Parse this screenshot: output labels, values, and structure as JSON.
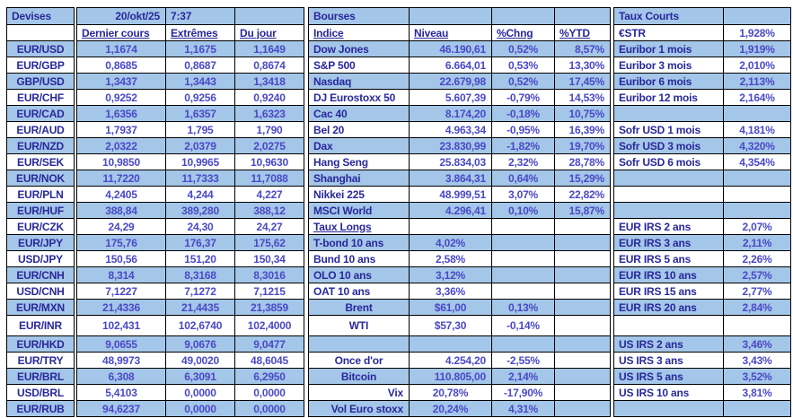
{
  "colors": {
    "row_blue": "#a4c6e8",
    "row_white": "#ffffff",
    "label_text": "#28289b",
    "value_text": "#4a49c7",
    "border": "#000000"
  },
  "devises": {
    "title": "Devises",
    "date": "20/okt/25",
    "time": "7:37",
    "col_headers": [
      "Dernier cours",
      "Extrêmes",
      "Du jour"
    ],
    "rows": [
      {
        "pair": "EUR/USD",
        "dernier": "1,1674",
        "extremes": "1,1675",
        "du_jour": "1,1649"
      },
      {
        "pair": "EUR/GBP",
        "dernier": "0,8685",
        "extremes": "0,8687",
        "du_jour": "0,8674"
      },
      {
        "pair": "GBP/USD",
        "dernier": "1,3437",
        "extremes": "1,3443",
        "du_jour": "1,3418"
      },
      {
        "pair": "EUR/CHF",
        "dernier": "0,9252",
        "extremes": "0,9256",
        "du_jour": "0,9240"
      },
      {
        "pair": "EUR/CAD",
        "dernier": "1,6356",
        "extremes": "1,6357",
        "du_jour": "1,6323"
      },
      {
        "pair": "EUR/AUD",
        "dernier": "1,7937",
        "extremes": "1,795",
        "du_jour": "1,790"
      },
      {
        "pair": "EUR/NZD",
        "dernier": "2,0322",
        "extremes": "2,0379",
        "du_jour": "2,0275"
      },
      {
        "pair": "EUR/SEK",
        "dernier": "10,9850",
        "extremes": "10,9965",
        "du_jour": "10,9630"
      },
      {
        "pair": "EUR/NOK",
        "dernier": "11,7220",
        "extremes": "11,7333",
        "du_jour": "11,7088"
      },
      {
        "pair": "EUR/PLN",
        "dernier": "4,2405",
        "extremes": "4,244",
        "du_jour": "4,227"
      },
      {
        "pair": "EUR/HUF",
        "dernier": "388,84",
        "extremes": "389,280",
        "du_jour": "388,12"
      },
      {
        "pair": "EUR/CZK",
        "dernier": "24,29",
        "extremes": "24,30",
        "du_jour": "24,27"
      },
      {
        "pair": "EUR/JPY",
        "dernier": "175,76",
        "extremes": "176,37",
        "du_jour": "175,62"
      },
      {
        "pair": "USD/JPY",
        "dernier": "150,56",
        "extremes": "151,20",
        "du_jour": "150,34"
      },
      {
        "pair": "EUR/CNH",
        "dernier": "8,314",
        "extremes": "8,3168",
        "du_jour": "8,3016"
      },
      {
        "pair": "USD/CNH",
        "dernier": "7,1227",
        "extremes": "7,1272",
        "du_jour": "7,1215"
      },
      {
        "pair": "EUR/MXN",
        "dernier": "21,4336",
        "extremes": "21,4435",
        "du_jour": "21,3859"
      },
      {
        "pair": "EUR/INR",
        "dernier": "102,431",
        "extremes": "102,6740",
        "du_jour": "102,4000"
      },
      {
        "pair": "EUR/HKD",
        "dernier": "9,0655",
        "extremes": "9,0676",
        "du_jour": "9,0477"
      },
      {
        "pair": "EUR/TRY",
        "dernier": "48,9973",
        "extremes": "49,0020",
        "du_jour": "48,6045"
      },
      {
        "pair": "EUR/BRL",
        "dernier": "6,308",
        "extremes": "6,3091",
        "du_jour": "6,2950"
      },
      {
        "pair": "USD/BRL",
        "dernier": "5,4103",
        "extremes": "0,0000",
        "du_jour": "0,0000"
      },
      {
        "pair": "EUR/RUB",
        "dernier": "94,6237",
        "extremes": "0,0000",
        "du_jour": "0,0000"
      }
    ]
  },
  "bourses": {
    "title": "Bourses",
    "col_headers": [
      "Indice",
      "Niveau",
      "%Chng",
      "%YTD"
    ],
    "rows": [
      {
        "label": "Dow Jones",
        "niveau": "46.190,61",
        "chng": "0,52%",
        "ytd": "8,57%"
      },
      {
        "label": "S&P 500",
        "niveau": "6.664,01",
        "chng": "0,53%",
        "ytd": "13,30%"
      },
      {
        "label": "Nasdaq",
        "niveau": "22.679,98",
        "chng": "0,52%",
        "ytd": "17,45%"
      },
      {
        "label": "DJ Eurostoxx 50",
        "niveau": "5.607,39",
        "chng": "-0,79%",
        "ytd": "14,53%"
      },
      {
        "label": "Cac 40",
        "niveau": "8.174,20",
        "chng": "-0,18%",
        "ytd": "10,75%"
      },
      {
        "label": "Bel 20",
        "niveau": "4.963,34",
        "chng": "-0,95%",
        "ytd": "16,39%"
      },
      {
        "label": "Dax",
        "niveau": "23.830,99",
        "chng": "-1,82%",
        "ytd": "19,70%"
      },
      {
        "label": "Hang Seng",
        "niveau": "25.834,03",
        "chng": "2,32%",
        "ytd": "28,78%"
      },
      {
        "label": "Shanghai",
        "niveau": "3.864,31",
        "chng": "0,64%",
        "ytd": "15,29%"
      },
      {
        "label": "Nikkei 225",
        "niveau": "48.999,51",
        "chng": "3,07%",
        "ytd": "22,82%"
      },
      {
        "label": "MSCI World",
        "niveau": "4.296,41",
        "chng": "0,10%",
        "ytd": "15,87%"
      },
      {
        "label": "Taux Longs",
        "niveau": "",
        "chng": "",
        "ytd": "",
        "style": "section_header"
      },
      {
        "label": "T-bond 10 ans",
        "niveau": "4,02%",
        "chng": "",
        "ytd": "",
        "niveau_align": "center"
      },
      {
        "label": "Bund 10 ans",
        "niveau": "2,58%",
        "chng": "",
        "ytd": "",
        "niveau_align": "center"
      },
      {
        "label": "OLO 10 ans",
        "niveau": "3,12%",
        "chng": "",
        "ytd": "",
        "niveau_align": "center"
      },
      {
        "label": "OAT 10 ans",
        "niveau": "3,36%",
        "chng": "",
        "ytd": "",
        "niveau_align": "center"
      },
      {
        "label": "Brent",
        "niveau": "$61,00",
        "chng": "0,13%",
        "ytd": "",
        "label_align": "center",
        "niveau_align": "center"
      },
      {
        "label": "WTI",
        "niveau": "$57,30",
        "chng": "-0,14%",
        "ytd": "",
        "label_align": "center",
        "niveau_align": "center"
      },
      {
        "label": "",
        "niveau": "",
        "chng": "",
        "ytd": ""
      },
      {
        "label": "Once d'or",
        "niveau": "4.254,20",
        "chng": "-2,55%",
        "ytd": "",
        "label_align": "center"
      },
      {
        "label": "Bitcoin",
        "niveau": "110.805,00",
        "chng": "2,14%",
        "ytd": "",
        "label_align": "center"
      },
      {
        "label": "Vix",
        "niveau": "20,78%",
        "chng": "-17,90%",
        "ytd": "",
        "label_align": "right",
        "niveau_align": "center"
      },
      {
        "label": "Vol Euro stoxx",
        "niveau": "20,24%",
        "chng": "4,31%",
        "ytd": "",
        "label_align": "right",
        "niveau_align": "center"
      }
    ]
  },
  "taux": {
    "title": "Taux Courts",
    "rows": [
      {
        "label": "€STR",
        "value": "1,928%"
      },
      {
        "label": "Euribor 1 mois",
        "value": "1,919%"
      },
      {
        "label": "Euribor 3 mois",
        "value": "2,010%"
      },
      {
        "label": "Euribor 6 mois",
        "value": "2,113%"
      },
      {
        "label": "Euribor 12 mois",
        "value": "2,164%"
      },
      {
        "label": "",
        "value": ""
      },
      {
        "label": "Sofr USD 1 mois",
        "value": "4,181%"
      },
      {
        "label": "Sofr USD 3 mois",
        "value": "4,320%"
      },
      {
        "label": "Sofr USD 6 mois",
        "value": "4,354%"
      },
      {
        "label": "",
        "value": ""
      },
      {
        "label": "",
        "value": ""
      },
      {
        "label": "",
        "value": ""
      },
      {
        "label": "EUR IRS 2 ans",
        "value": "2,07%"
      },
      {
        "label": "EUR IRS 3 ans",
        "value": "2,11%"
      },
      {
        "label": "EUR IRS 5 ans",
        "value": "2,26%"
      },
      {
        "label": "EUR IRS 10 ans",
        "value": "2,57%"
      },
      {
        "label": "EUR IRS 15 ans",
        "value": "2,77%"
      },
      {
        "label": "EUR IRS 20 ans",
        "value": "2,84%"
      },
      {
        "label": "",
        "value": ""
      },
      {
        "label": "US IRS 2 ans",
        "value": "3,46%"
      },
      {
        "label": "US IRS 3 ans",
        "value": "3,43%"
      },
      {
        "label": "US IRS 5 ans",
        "value": "3,52%"
      },
      {
        "label": "US IRS 10 ans",
        "value": "3,81%"
      },
      {
        "label": "",
        "value": ""
      }
    ]
  }
}
